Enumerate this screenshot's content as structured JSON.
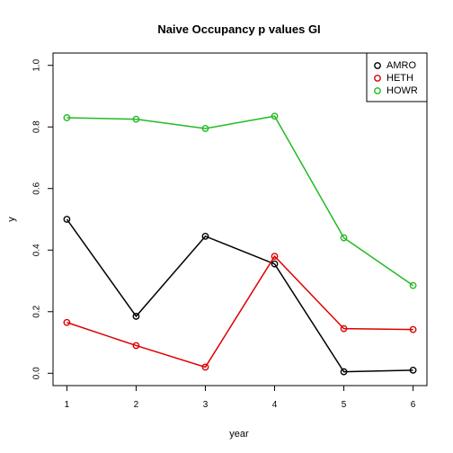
{
  "chart_data": {
    "type": "line",
    "title": "Naive Occupancy p values GI",
    "xlabel": "year",
    "ylabel": "y",
    "x": [
      1,
      2,
      3,
      4,
      5,
      6
    ],
    "xticks": [
      "1",
      "2",
      "3",
      "4",
      "5",
      "6"
    ],
    "yticks": [
      "0.0",
      "0.2",
      "0.4",
      "0.6",
      "0.8",
      "1.0"
    ],
    "xlim": [
      0.8,
      6.2
    ],
    "ylim": [
      -0.04,
      1.04
    ],
    "grid": false,
    "legend_position": "top-right",
    "series": [
      {
        "name": "AMRO",
        "color": "#000000",
        "values": [
          0.5,
          0.185,
          0.445,
          0.355,
          0.005,
          0.01
        ]
      },
      {
        "name": "HETH",
        "color": "#dd0000",
        "values": [
          0.165,
          0.09,
          0.02,
          0.38,
          0.145,
          0.142
        ]
      },
      {
        "name": "HOWR",
        "color": "#22bb22",
        "values": [
          0.83,
          0.825,
          0.795,
          0.835,
          0.44,
          0.285
        ]
      }
    ]
  }
}
